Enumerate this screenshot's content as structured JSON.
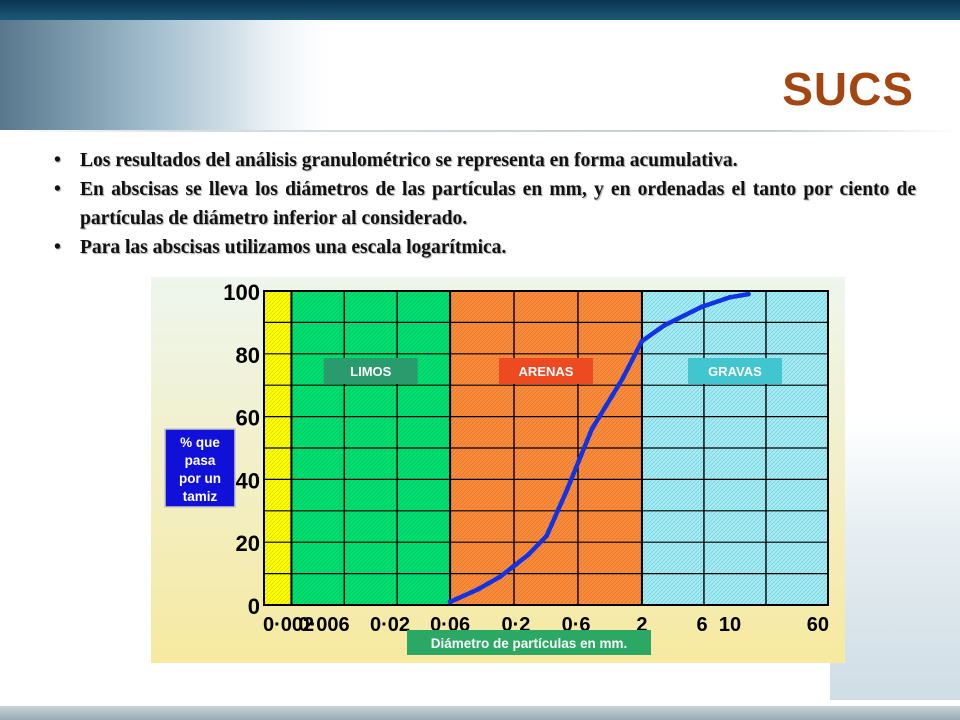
{
  "slide": {
    "title": "SUCS",
    "bullets": [
      "Los resultados del análisis granulométrico se representa en forma acumulativa.",
      "En abscisas se lleva los diámetros de las partículas en mm, y en ordenadas el tanto por ciento de partículas de diámetro inferior al considerado.",
      "Para las abscisas utilizamos una escala logarítmica."
    ],
    "bullet_glyph": "•"
  },
  "chart_data": {
    "type": "line",
    "x_scale": "log",
    "xlim": [
      0.002,
      60
    ],
    "ylim": [
      0,
      100
    ],
    "x_ticks": [
      {
        "value": 0.002,
        "label": "0·002"
      },
      {
        "value": 0.006,
        "label": "0·006"
      },
      {
        "value": 0.02,
        "label": "0·02"
      },
      {
        "value": 0.06,
        "label": "0·06"
      },
      {
        "value": 0.2,
        "label": "0·2"
      },
      {
        "value": 0.6,
        "label": "0·6"
      },
      {
        "value": 2,
        "label": "2"
      },
      {
        "value": 6,
        "label": "6"
      },
      {
        "value": 10,
        "label": "10"
      },
      {
        "value": 60,
        "label": "60"
      }
    ],
    "y_ticks": [
      {
        "value": 0,
        "label": "0"
      },
      {
        "value": 20,
        "label": "20"
      },
      {
        "value": 40,
        "label": "40"
      },
      {
        "value": 60,
        "label": "60"
      },
      {
        "value": 80,
        "label": "80"
      },
      {
        "value": 100,
        "label": "100"
      }
    ],
    "xlabel": "Diámetro de partículas en mm.",
    "ylabel": "% que pasa por un tamiz",
    "ylabel_lines": [
      "% que",
      "pasa",
      "por un",
      "tamiz"
    ],
    "grid": true,
    "regions": [
      {
        "from": 0.002,
        "to": 0.0033,
        "color": "#ffff00"
      },
      {
        "from": 0.0033,
        "to": 0.06,
        "color": "#00e272",
        "label": "LIMOS",
        "label_color": "#2a9b6c"
      },
      {
        "from": 0.06,
        "to": 2,
        "color": "#ff8c3a",
        "label": "ARENAS",
        "label_color": "#ee4a22"
      },
      {
        "from": 2,
        "to": 60,
        "color": "#a0eef8",
        "label": "GRAVAS",
        "label_color": "#41c6cf"
      }
    ],
    "series": [
      {
        "color": "#1232e6",
        "points": [
          {
            "x": 0.06,
            "y": 1
          },
          {
            "x": 0.1,
            "y": 5
          },
          {
            "x": 0.15,
            "y": 9
          },
          {
            "x": 0.25,
            "y": 16
          },
          {
            "x": 0.35,
            "y": 22
          },
          {
            "x": 0.5,
            "y": 36
          },
          {
            "x": 0.8,
            "y": 56
          },
          {
            "x": 1.4,
            "y": 72
          },
          {
            "x": 2,
            "y": 84
          },
          {
            "x": 3,
            "y": 89
          },
          {
            "x": 6,
            "y": 95
          },
          {
            "x": 10,
            "y": 98
          },
          {
            "x": 14,
            "y": 99
          }
        ]
      }
    ]
  }
}
